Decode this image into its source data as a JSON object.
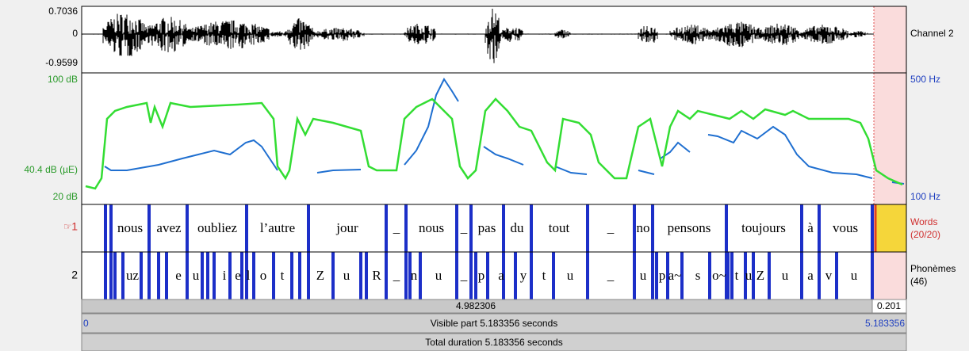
{
  "waveform": {
    "max": "0.7036",
    "zero": "0",
    "min": "-0.9599",
    "channel": "Channel 2"
  },
  "analysis": {
    "intensity_top": "100 dB",
    "intensity_mid": "40.4 dB (µE)",
    "intensity_bottom": "20 dB",
    "pitch_top": "500 Hz",
    "pitch_bottom": "100 Hz"
  },
  "tiers": [
    {
      "number": "1",
      "name": "Words",
      "count": "(20/20)",
      "labels": [
        "nous",
        "avez",
        "oubliez",
        "l’autre",
        "jour",
        "_",
        "nous",
        "_",
        "pas",
        "du",
        "tout",
        "_",
        "no",
        "pensons",
        "toujours",
        "à",
        "vous"
      ]
    },
    {
      "number": "2",
      "name": "Phonèmes",
      "count": "(46)",
      "labels": [
        "uz",
        "e",
        "u",
        "i",
        "e",
        "l",
        "o",
        "t",
        "Z",
        "u",
        "R",
        "_",
        "n",
        "u",
        "_",
        "p",
        "a",
        "y",
        "t",
        "u",
        "_",
        "u",
        "p",
        "a~",
        "s",
        "o~",
        "t",
        "u",
        "Z",
        "u",
        "a",
        "v",
        "u"
      ]
    }
  ],
  "bottom": {
    "selection_left": "4.982306",
    "selection_right": "0.201",
    "visible_start": "0",
    "visible_part": "Visible part 5.183356 seconds",
    "visible_end": "5.183356",
    "total": "Total duration 5.183356 seconds"
  }
}
